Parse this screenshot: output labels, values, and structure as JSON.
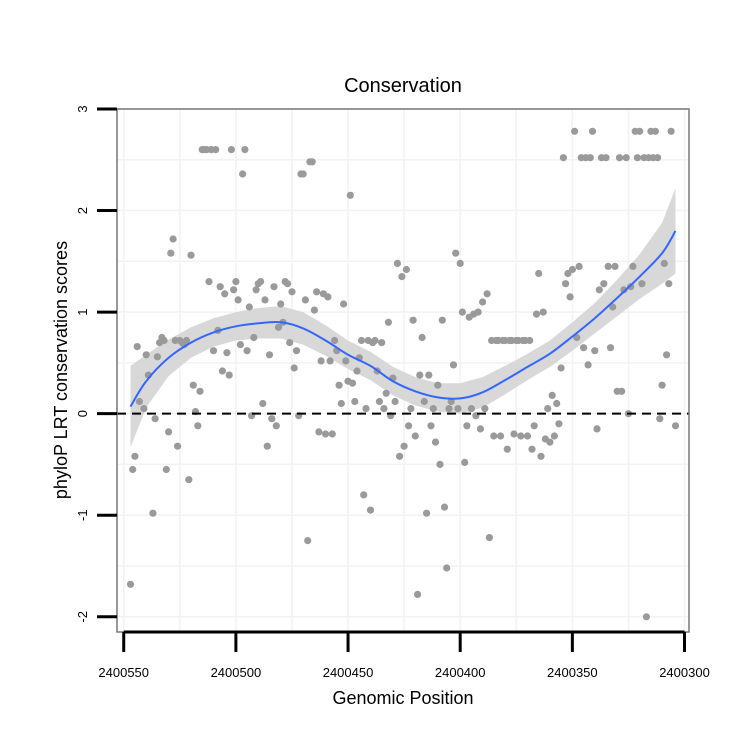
{
  "chart_data": {
    "type": "scatter",
    "title": "Conservation",
    "xlabel": "Genomic Position",
    "ylabel": "phyloP LRT conservation scores",
    "x_reversed": true,
    "xlim": [
      2400298,
      2400553
    ],
    "ylim": [
      -2.15,
      3.0
    ],
    "x_ticks": [
      2400550,
      2400500,
      2400450,
      2400400,
      2400350,
      2400300
    ],
    "x_tick_labels": [
      "2400550",
      "2400500",
      "2400450",
      "2400400",
      "2400350",
      "2400300"
    ],
    "y_ticks": [
      -2,
      -1,
      0,
      1,
      2,
      3
    ],
    "y_tick_labels": [
      "-2",
      "-1",
      "0",
      "1",
      "2",
      "3"
    ],
    "grid": true,
    "reference_line": {
      "y": 0,
      "style": "dashed",
      "color": "#000000"
    },
    "colors": {
      "points": "#9a9a9a",
      "smooth_line": "#3366ff",
      "ribbon": "#d4d4d4",
      "grid": "#f2f2f2",
      "panel_border": "#777777"
    },
    "points": [
      {
        "x": 2400547,
        "y": -1.68
      },
      {
        "x": 2400546,
        "y": -0.55
      },
      {
        "x": 2400545,
        "y": -0.42
      },
      {
        "x": 2400544,
        "y": 0.66
      },
      {
        "x": 2400543,
        "y": 0.12
      },
      {
        "x": 2400541,
        "y": 0.05
      },
      {
        "x": 2400540,
        "y": 0.58
      },
      {
        "x": 2400539,
        "y": 0.38
      },
      {
        "x": 2400537,
        "y": -0.98
      },
      {
        "x": 2400536,
        "y": -0.05
      },
      {
        "x": 2400535,
        "y": 0.56
      },
      {
        "x": 2400534,
        "y": 0.7
      },
      {
        "x": 2400533,
        "y": 0.75
      },
      {
        "x": 2400532,
        "y": 0.72
      },
      {
        "x": 2400531,
        "y": -0.55
      },
      {
        "x": 2400530,
        "y": -0.18
      },
      {
        "x": 2400529,
        "y": 1.58
      },
      {
        "x": 2400528,
        "y": 1.72
      },
      {
        "x": 2400527,
        "y": 0.72
      },
      {
        "x": 2400526,
        "y": -0.32
      },
      {
        "x": 2400525,
        "y": 0.72
      },
      {
        "x": 2400524,
        "y": 0.7
      },
      {
        "x": 2400523,
        "y": 0.68
      },
      {
        "x": 2400522,
        "y": 0.72
      },
      {
        "x": 2400521,
        "y": -0.65
      },
      {
        "x": 2400520,
        "y": 1.56
      },
      {
        "x": 2400519,
        "y": 0.28
      },
      {
        "x": 2400518,
        "y": 0.02
      },
      {
        "x": 2400517,
        "y": -0.12
      },
      {
        "x": 2400516,
        "y": 0.22
      },
      {
        "x": 2400515,
        "y": 2.6
      },
      {
        "x": 2400514,
        "y": 2.6
      },
      {
        "x": 2400513,
        "y": 2.6
      },
      {
        "x": 2400512,
        "y": 1.3
      },
      {
        "x": 2400511,
        "y": 2.6
      },
      {
        "x": 2400510,
        "y": 0.62
      },
      {
        "x": 2400509,
        "y": 2.6
      },
      {
        "x": 2400508,
        "y": 0.82
      },
      {
        "x": 2400507,
        "y": 1.25
      },
      {
        "x": 2400506,
        "y": 0.42
      },
      {
        "x": 2400505,
        "y": 1.18
      },
      {
        "x": 2400504,
        "y": 0.6
      },
      {
        "x": 2400503,
        "y": 0.38
      },
      {
        "x": 2400502,
        "y": 2.6
      },
      {
        "x": 2400501,
        "y": 1.22
      },
      {
        "x": 2400500,
        "y": 1.3
      },
      {
        "x": 2400499,
        "y": 1.12
      },
      {
        "x": 2400498,
        "y": 0.68
      },
      {
        "x": 2400497,
        "y": 2.36
      },
      {
        "x": 2400496,
        "y": 2.6
      },
      {
        "x": 2400495,
        "y": 0.62
      },
      {
        "x": 2400494,
        "y": 1.05
      },
      {
        "x": 2400493,
        "y": -0.02
      },
      {
        "x": 2400492,
        "y": 0.75
      },
      {
        "x": 2400491,
        "y": 1.22
      },
      {
        "x": 2400490,
        "y": 1.28
      },
      {
        "x": 2400489,
        "y": 1.3
      },
      {
        "x": 2400488,
        "y": 0.1
      },
      {
        "x": 2400487,
        "y": 1.12
      },
      {
        "x": 2400486,
        "y": -0.32
      },
      {
        "x": 2400485,
        "y": 0.58
      },
      {
        "x": 2400484,
        "y": -0.05
      },
      {
        "x": 2400483,
        "y": 1.25
      },
      {
        "x": 2400482,
        "y": -0.12
      },
      {
        "x": 2400481,
        "y": 0.85
      },
      {
        "x": 2400480,
        "y": 1.08
      },
      {
        "x": 2400479,
        "y": 0.9
      },
      {
        "x": 2400478,
        "y": 1.3
      },
      {
        "x": 2400477,
        "y": 1.28
      },
      {
        "x": 2400476,
        "y": 0.7
      },
      {
        "x": 2400475,
        "y": 1.2
      },
      {
        "x": 2400474,
        "y": 0.45
      },
      {
        "x": 2400473,
        "y": 0.62
      },
      {
        "x": 2400472,
        "y": -0.02
      },
      {
        "x": 2400471,
        "y": 2.36
      },
      {
        "x": 2400470,
        "y": 2.36
      },
      {
        "x": 2400469,
        "y": 1.12
      },
      {
        "x": 2400468,
        "y": -1.25
      },
      {
        "x": 2400467,
        "y": 2.48
      },
      {
        "x": 2400466,
        "y": 2.48
      },
      {
        "x": 2400465,
        "y": 1.02
      },
      {
        "x": 2400464,
        "y": 1.2
      },
      {
        "x": 2400463,
        "y": -0.18
      },
      {
        "x": 2400462,
        "y": 0.52
      },
      {
        "x": 2400461,
        "y": 1.18
      },
      {
        "x": 2400460,
        "y": -0.2
      },
      {
        "x": 2400459,
        "y": 1.15
      },
      {
        "x": 2400458,
        "y": 0.52
      },
      {
        "x": 2400457,
        "y": -0.2
      },
      {
        "x": 2400456,
        "y": 0.72
      },
      {
        "x": 2400455,
        "y": 0.62
      },
      {
        "x": 2400454,
        "y": 0.28
      },
      {
        "x": 2400453,
        "y": 0.1
      },
      {
        "x": 2400452,
        "y": 1.08
      },
      {
        "x": 2400451,
        "y": 0.52
      },
      {
        "x": 2400450,
        "y": 0.32
      },
      {
        "x": 2400449,
        "y": 2.15
      },
      {
        "x": 2400448,
        "y": 0.3
      },
      {
        "x": 2400447,
        "y": 0.12
      },
      {
        "x": 2400446,
        "y": 0.42
      },
      {
        "x": 2400445,
        "y": 0.55
      },
      {
        "x": 2400444,
        "y": 0.72
      },
      {
        "x": 2400443,
        "y": -0.8
      },
      {
        "x": 2400442,
        "y": 0.05
      },
      {
        "x": 2400441,
        "y": 0.72
      },
      {
        "x": 2400440,
        "y": -0.95
      },
      {
        "x": 2400439,
        "y": 0.7
      },
      {
        "x": 2400438,
        "y": 0.72
      },
      {
        "x": 2400437,
        "y": 0.42
      },
      {
        "x": 2400436,
        "y": 0.12
      },
      {
        "x": 2400435,
        "y": 0.7
      },
      {
        "x": 2400434,
        "y": 0.05
      },
      {
        "x": 2400433,
        "y": 0.2
      },
      {
        "x": 2400432,
        "y": 0.9
      },
      {
        "x": 2400431,
        "y": -0.02
      },
      {
        "x": 2400430,
        "y": 0.35
      },
      {
        "x": 2400429,
        "y": 0.12
      },
      {
        "x": 2400428,
        "y": 1.48
      },
      {
        "x": 2400427,
        "y": -0.42
      },
      {
        "x": 2400426,
        "y": 1.35
      },
      {
        "x": 2400425,
        "y": -0.32
      },
      {
        "x": 2400424,
        "y": 1.42
      },
      {
        "x": 2400423,
        "y": -0.12
      },
      {
        "x": 2400422,
        "y": 0.05
      },
      {
        "x": 2400421,
        "y": 0.92
      },
      {
        "x": 2400420,
        "y": -0.22
      },
      {
        "x": 2400419,
        "y": -1.78
      },
      {
        "x": 2400418,
        "y": 0.38
      },
      {
        "x": 2400417,
        "y": 0.75
      },
      {
        "x": 2400416,
        "y": 0.12
      },
      {
        "x": 2400415,
        "y": -0.98
      },
      {
        "x": 2400414,
        "y": 0.38
      },
      {
        "x": 2400413,
        "y": -0.12
      },
      {
        "x": 2400412,
        "y": 0.05
      },
      {
        "x": 2400411,
        "y": -0.28
      },
      {
        "x": 2400410,
        "y": 0.28
      },
      {
        "x": 2400409,
        "y": -0.5
      },
      {
        "x": 2400408,
        "y": 0.92
      },
      {
        "x": 2400407,
        "y": -0.92
      },
      {
        "x": 2400406,
        "y": -1.52
      },
      {
        "x": 2400405,
        "y": 0.05
      },
      {
        "x": 2400404,
        "y": 0.12
      },
      {
        "x": 2400403,
        "y": 0.48
      },
      {
        "x": 2400402,
        "y": 1.58
      },
      {
        "x": 2400401,
        "y": 0.05
      },
      {
        "x": 2400400,
        "y": 1.48
      },
      {
        "x": 2400399,
        "y": 1.0
      },
      {
        "x": 2400398,
        "y": -0.48
      },
      {
        "x": 2400397,
        "y": -0.12
      },
      {
        "x": 2400396,
        "y": 0.95
      },
      {
        "x": 2400395,
        "y": 0.05
      },
      {
        "x": 2400394,
        "y": 0.98
      },
      {
        "x": 2400393,
        "y": -0.02
      },
      {
        "x": 2400392,
        "y": 1.0
      },
      {
        "x": 2400391,
        "y": -0.15
      },
      {
        "x": 2400390,
        "y": 1.1
      },
      {
        "x": 2400389,
        "y": 0.05
      },
      {
        "x": 2400388,
        "y": 1.18
      },
      {
        "x": 2400387,
        "y": -1.22
      },
      {
        "x": 2400386,
        "y": 0.72
      },
      {
        "x": 2400385,
        "y": -0.22
      },
      {
        "x": 2400384,
        "y": 0.72
      },
      {
        "x": 2400383,
        "y": 0.72
      },
      {
        "x": 2400382,
        "y": -0.22
      },
      {
        "x": 2400381,
        "y": 0.72
      },
      {
        "x": 2400380,
        "y": 0.72
      },
      {
        "x": 2400379,
        "y": -0.35
      },
      {
        "x": 2400378,
        "y": 0.72
      },
      {
        "x": 2400377,
        "y": 0.72
      },
      {
        "x": 2400376,
        "y": -0.2
      },
      {
        "x": 2400375,
        "y": 0.72
      },
      {
        "x": 2400374,
        "y": 0.72
      },
      {
        "x": 2400373,
        "y": -0.22
      },
      {
        "x": 2400372,
        "y": 0.72
      },
      {
        "x": 2400371,
        "y": 0.72
      },
      {
        "x": 2400370,
        "y": -0.22
      },
      {
        "x": 2400369,
        "y": 0.72
      },
      {
        "x": 2400368,
        "y": -0.35
      },
      {
        "x": 2400367,
        "y": -0.12
      },
      {
        "x": 2400366,
        "y": 0.98
      },
      {
        "x": 2400365,
        "y": 1.38
      },
      {
        "x": 2400364,
        "y": -0.42
      },
      {
        "x": 2400363,
        "y": 1.0
      },
      {
        "x": 2400362,
        "y": -0.25
      },
      {
        "x": 2400361,
        "y": 0.05
      },
      {
        "x": 2400360,
        "y": -0.28
      },
      {
        "x": 2400359,
        "y": 0.18
      },
      {
        "x": 2400358,
        "y": -0.22
      },
      {
        "x": 2400357,
        "y": 0.1
      },
      {
        "x": 2400356,
        "y": -0.1
      },
      {
        "x": 2400355,
        "y": 0.45
      },
      {
        "x": 2400354,
        "y": 2.52
      },
      {
        "x": 2400353,
        "y": 1.28
      },
      {
        "x": 2400352,
        "y": 1.38
      },
      {
        "x": 2400351,
        "y": 1.15
      },
      {
        "x": 2400350,
        "y": 1.42
      },
      {
        "x": 2400349,
        "y": 2.78
      },
      {
        "x": 2400348,
        "y": 0.75
      },
      {
        "x": 2400347,
        "y": 1.45
      },
      {
        "x": 2400346,
        "y": 2.52
      },
      {
        "x": 2400345,
        "y": 0.65
      },
      {
        "x": 2400344,
        "y": 2.52
      },
      {
        "x": 2400343,
        "y": 0.48
      },
      {
        "x": 2400342,
        "y": 2.52
      },
      {
        "x": 2400341,
        "y": 2.78
      },
      {
        "x": 2400340,
        "y": 0.62
      },
      {
        "x": 2400339,
        "y": -0.15
      },
      {
        "x": 2400338,
        "y": 1.22
      },
      {
        "x": 2400337,
        "y": 2.52
      },
      {
        "x": 2400336,
        "y": 1.28
      },
      {
        "x": 2400335,
        "y": 2.52
      },
      {
        "x": 2400334,
        "y": 1.45
      },
      {
        "x": 2400333,
        "y": 0.65
      },
      {
        "x": 2400332,
        "y": 1.05
      },
      {
        "x": 2400331,
        "y": 1.45
      },
      {
        "x": 2400330,
        "y": 0.22
      },
      {
        "x": 2400329,
        "y": 2.52
      },
      {
        "x": 2400328,
        "y": 0.22
      },
      {
        "x": 2400327,
        "y": 1.22
      },
      {
        "x": 2400326,
        "y": 2.52
      },
      {
        "x": 2400325,
        "y": 0.0
      },
      {
        "x": 2400324,
        "y": 1.25
      },
      {
        "x": 2400323,
        "y": 1.45
      },
      {
        "x": 2400322,
        "y": 2.78
      },
      {
        "x": 2400321,
        "y": 2.52
      },
      {
        "x": 2400320,
        "y": 2.78
      },
      {
        "x": 2400319,
        "y": 1.28
      },
      {
        "x": 2400318,
        "y": 2.52
      },
      {
        "x": 2400317,
        "y": -2.0
      },
      {
        "x": 2400316,
        "y": 2.52
      },
      {
        "x": 2400315,
        "y": 2.78
      },
      {
        "x": 2400314,
        "y": 2.52
      },
      {
        "x": 2400313,
        "y": 2.78
      },
      {
        "x": 2400312,
        "y": 2.52
      },
      {
        "x": 2400311,
        "y": -0.05
      },
      {
        "x": 2400310,
        "y": 0.28
      },
      {
        "x": 2400309,
        "y": 1.48
      },
      {
        "x": 2400308,
        "y": 0.58
      },
      {
        "x": 2400307,
        "y": 1.28
      },
      {
        "x": 2400306,
        "y": 2.78
      },
      {
        "x": 2400304,
        "y": -0.12
      }
    ],
    "smooth_fit": {
      "x": [
        2400547,
        2400540,
        2400530,
        2400520,
        2400510,
        2400500,
        2400490,
        2400480,
        2400470,
        2400460,
        2400450,
        2400440,
        2400430,
        2400420,
        2400410,
        2400400,
        2400390,
        2400380,
        2400370,
        2400360,
        2400350,
        2400340,
        2400330,
        2400320,
        2400310,
        2400304
      ],
      "y": [
        0.07,
        0.32,
        0.55,
        0.7,
        0.8,
        0.86,
        0.89,
        0.9,
        0.84,
        0.72,
        0.58,
        0.47,
        0.32,
        0.22,
        0.16,
        0.15,
        0.21,
        0.33,
        0.46,
        0.59,
        0.76,
        0.94,
        1.14,
        1.35,
        1.58,
        1.8
      ],
      "ribbon_halfwidth": [
        0.4,
        0.26,
        0.18,
        0.15,
        0.14,
        0.14,
        0.15,
        0.16,
        0.16,
        0.15,
        0.14,
        0.14,
        0.14,
        0.14,
        0.14,
        0.15,
        0.15,
        0.14,
        0.13,
        0.13,
        0.14,
        0.15,
        0.18,
        0.22,
        0.3,
        0.42
      ]
    }
  }
}
